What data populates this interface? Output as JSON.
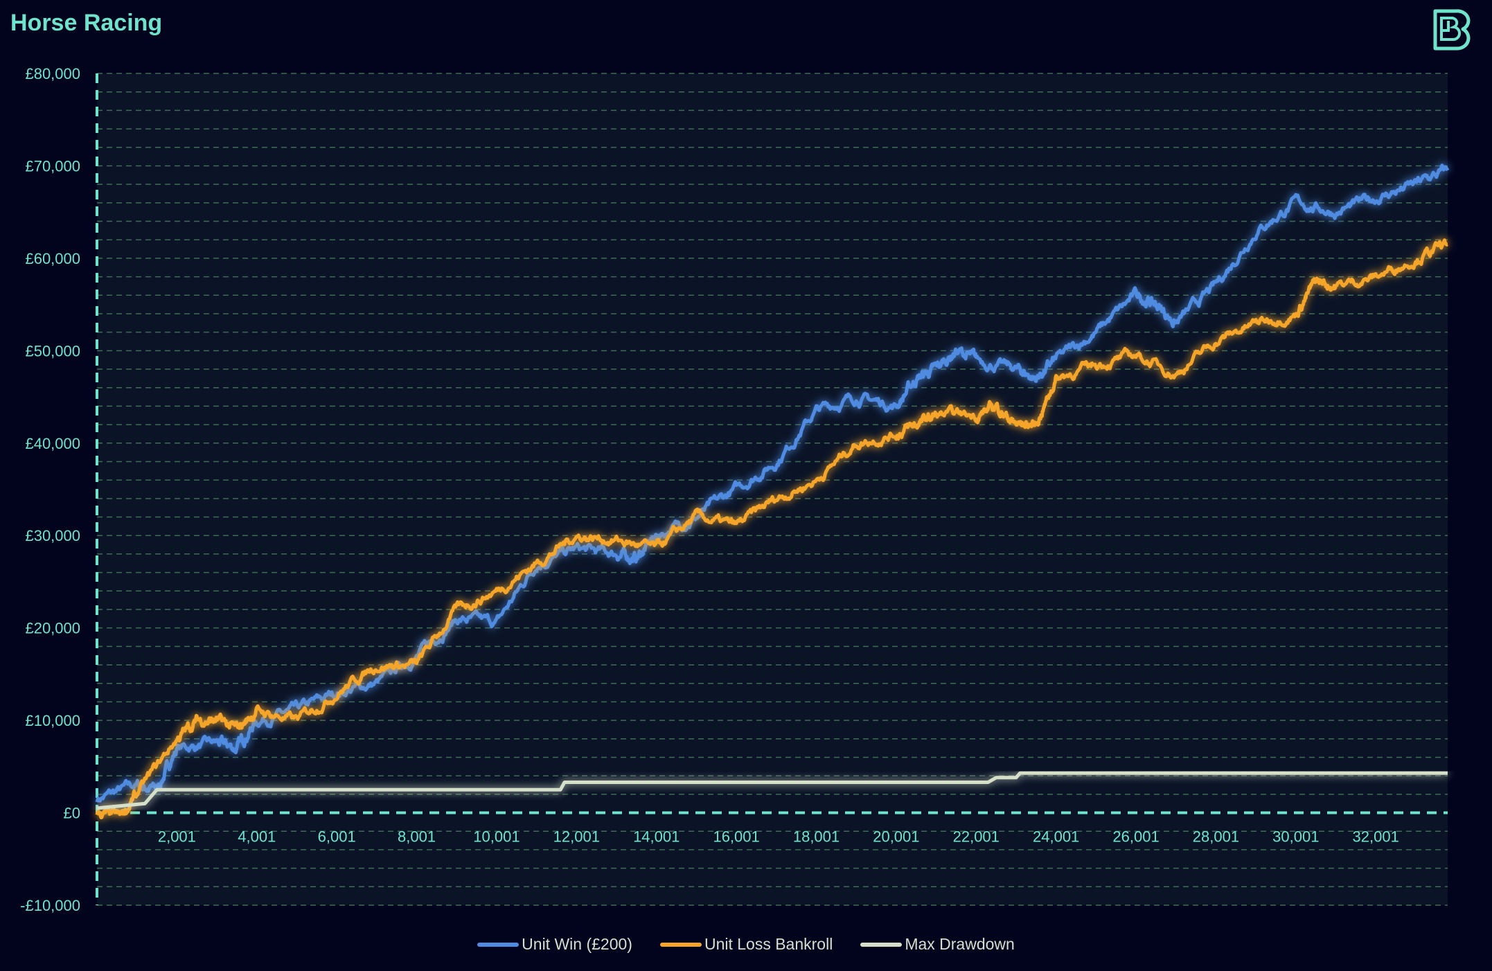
{
  "header": {
    "title": "Horse Racing",
    "logo_icon": "b-logo-icon"
  },
  "colors": {
    "accent": "#6fe3cc",
    "background": "#02041d",
    "plot_bg": "#0b1427",
    "grid": "#3f6a55"
  },
  "chart_data": {
    "type": "line",
    "title": "Horse Racing",
    "xlabel": "",
    "ylabel": "",
    "ylim": [
      -10000,
      80000
    ],
    "xlim": [
      1,
      33800
    ],
    "yticks": [
      -10000,
      0,
      10000,
      20000,
      30000,
      40000,
      50000,
      60000,
      70000,
      80000
    ],
    "ytick_labels": [
      "-£10,000",
      "£0",
      "£10,000",
      "£20,000",
      "£30,000",
      "£40,000",
      "£50,000",
      "£60,000",
      "£70,000",
      "£80,000"
    ],
    "xticks": [
      2001,
      4001,
      6001,
      8001,
      10001,
      12001,
      14001,
      16001,
      18001,
      20001,
      22001,
      24001,
      26001,
      28001,
      30001,
      32001
    ],
    "xtick_labels": [
      "2,001",
      "4,001",
      "6,001",
      "8,001",
      "10,001",
      "12,001",
      "14,001",
      "16,001",
      "18,001",
      "20,001",
      "22,001",
      "24,001",
      "26,001",
      "28,001",
      "30,001",
      "32,001"
    ],
    "grid": true,
    "legend_position": "bottom",
    "series": [
      {
        "name": "Unit Win (£200)",
        "color": "#4f8be0",
        "noise": 700,
        "x": [
          1,
          1000,
          1500,
          2000,
          3000,
          3500,
          4000,
          5000,
          6000,
          7000,
          8000,
          9000,
          10000,
          11000,
          12000,
          13000,
          13500,
          14000,
          15000,
          16000,
          17000,
          18000,
          19000,
          20000,
          20500,
          21000,
          21500,
          22000,
          23000,
          23500,
          24000,
          25000,
          26000,
          26500,
          27000,
          28000,
          29000,
          30000,
          31000,
          32000,
          33000,
          33800
        ],
        "y": [
          1500,
          3000,
          2500,
          7000,
          7500,
          7000,
          10000,
          11000,
          13000,
          14000,
          17000,
          21000,
          20500,
          27000,
          28500,
          28000,
          27500,
          30000,
          32000,
          35000,
          38000,
          43500,
          45000,
          44000,
          47000,
          48000,
          50000,
          49000,
          48000,
          47000,
          49000,
          52000,
          56000,
          55000,
          53000,
          57000,
          63000,
          66000,
          65000,
          66500,
          68000,
          69500
        ]
      },
      {
        "name": "Unit Loss Bankroll",
        "color": "#f5a52a",
        "noise": 650,
        "x": [
          1,
          600,
          1000,
          2000,
          2500,
          3000,
          3500,
          4000,
          5000,
          6000,
          7000,
          8000,
          9000,
          10000,
          11000,
          12000,
          13000,
          14000,
          15000,
          16000,
          17000,
          18000,
          19000,
          20000,
          20500,
          21000,
          22000,
          22500,
          23000,
          23500,
          24000,
          25000,
          26000,
          27000,
          28000,
          29000,
          30000,
          30500,
          31000,
          32000,
          33000,
          33800
        ],
        "y": [
          0,
          -500,
          2000,
          8000,
          10000,
          10000,
          9000,
          11000,
          10000,
          13000,
          16000,
          16000,
          22000,
          24000,
          27000,
          30000,
          29500,
          28500,
          32000,
          31000,
          34000,
          36000,
          40000,
          41000,
          42000,
          43000,
          43000,
          44000,
          42000,
          42000,
          47000,
          48500,
          49500,
          47500,
          51000,
          53000,
          54000,
          57500,
          57000,
          58000,
          60000,
          61500
        ]
      },
      {
        "name": "Max Drawdown",
        "color": "#d6dfc8",
        "noise": 0,
        "step": true,
        "x": [
          1,
          1200,
          1500,
          11600,
          11700,
          22300,
          22500,
          23000,
          23100,
          33800
        ],
        "y": [
          500,
          1000,
          2500,
          2500,
          3300,
          3300,
          3800,
          3800,
          4300,
          4300
        ]
      }
    ]
  }
}
